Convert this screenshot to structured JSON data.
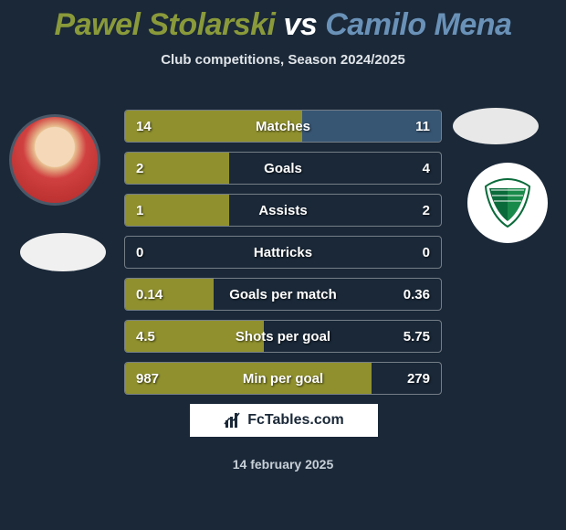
{
  "title": {
    "player1": "Pawel Stolarski",
    "vs": "vs",
    "player2": "Camilo Mena",
    "p1_color": "#8a9a3a",
    "vs_color": "#ffffff",
    "p2_color": "#6a92b8"
  },
  "subtitle": "Club competitions, Season 2024/2025",
  "stats": {
    "rows": [
      {
        "label": "Matches",
        "left": "14",
        "right": "11",
        "left_pct": 56,
        "right_pct": 44
      },
      {
        "label": "Goals",
        "left": "2",
        "right": "4",
        "left_pct": 33,
        "right_pct": 0
      },
      {
        "label": "Assists",
        "left": "1",
        "right": "2",
        "left_pct": 33,
        "right_pct": 0
      },
      {
        "label": "Hattricks",
        "left": "0",
        "right": "0",
        "left_pct": 0,
        "right_pct": 0
      },
      {
        "label": "Goals per match",
        "left": "0.14",
        "right": "0.36",
        "left_pct": 28,
        "right_pct": 0
      },
      {
        "label": "Shots per goal",
        "left": "4.5",
        "right": "5.75",
        "left_pct": 44,
        "right_pct": 0
      },
      {
        "label": "Min per goal",
        "left": "987",
        "right": "279",
        "left_pct": 78,
        "right_pct": 0
      }
    ],
    "bar_left_color": "#9a9a2e",
    "bar_right_color": "#3a5a7a",
    "row_border_color": "rgba(255,255,255,0.4)",
    "label_fontsize": 15,
    "value_fontsize": 15
  },
  "branding": {
    "site": "FcTables.com"
  },
  "date": "14 february 2025",
  "colors": {
    "background": "#1a2838",
    "text_light": "#e0e4e8",
    "text_muted": "#c8d0d8"
  }
}
